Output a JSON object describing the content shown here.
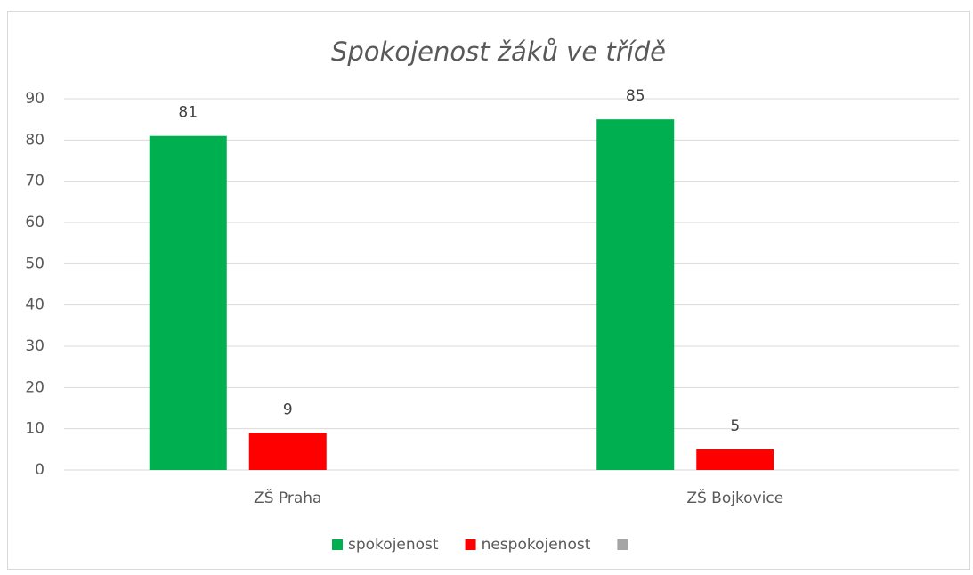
{
  "chart_data": {
    "type": "bar",
    "title": "Spokojenost žáků ve třídě",
    "categories": [
      "ZŠ Praha",
      "ZŠ Bojkovice"
    ],
    "series": [
      {
        "name": "spokojenost",
        "color": "#00b050",
        "values": [
          81,
          85
        ]
      },
      {
        "name": "nespokojenost",
        "color": "#ff0000",
        "values": [
          9,
          5
        ]
      },
      {
        "color": "#a5a5a5",
        "values": [
          null,
          null
        ]
      }
    ],
    "ylim": [
      0,
      90
    ],
    "yticks": [
      0,
      10,
      20,
      30,
      40,
      50,
      60,
      70,
      80,
      90
    ],
    "grid": true,
    "legend": "bottom"
  }
}
